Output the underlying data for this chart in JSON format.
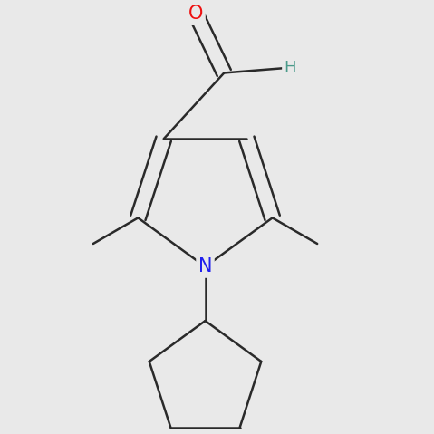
{
  "background_color": "#e9e9e9",
  "bond_color": "#2a2a2a",
  "bond_width": 1.8,
  "atom_colors": {
    "O": "#ee1111",
    "N": "#2020ee",
    "H": "#4a9a8a",
    "C": "#2a2a2a"
  },
  "font_size_O": 15,
  "font_size_N": 15,
  "font_size_H": 13,
  "figsize": [
    4.79,
    4.79
  ],
  "dpi": 100
}
